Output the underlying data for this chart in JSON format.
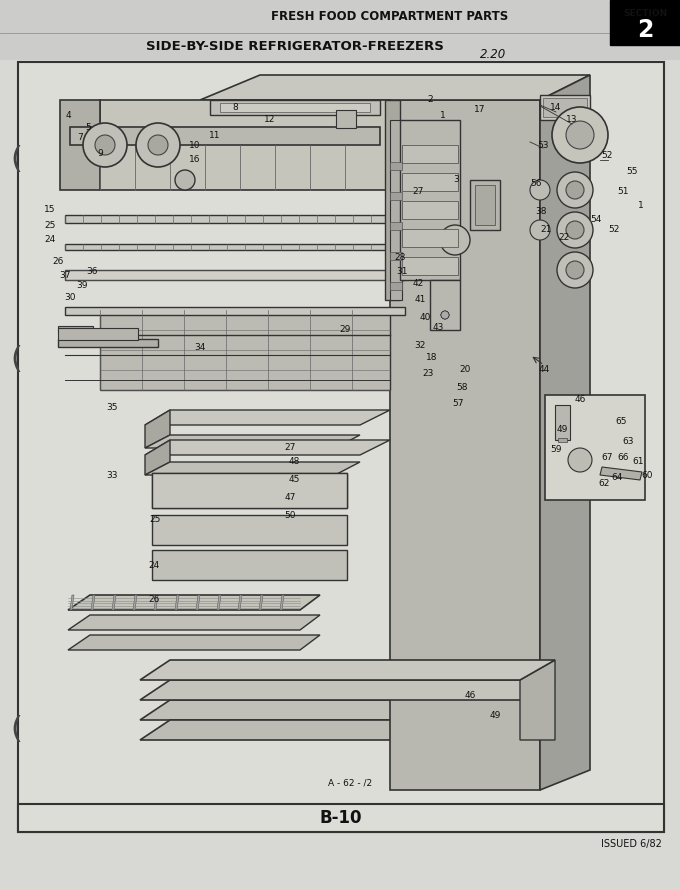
{
  "title_left": "FRESH FOOD COMPARTMENT PARTS",
  "section_label": "SECTION",
  "section_number": "2",
  "subtitle": "SIDE-BY-SIDE REFRIGERATOR-FREEZERS",
  "page_code": "2.20",
  "diagram_label": "A - 62 - /2",
  "bottom_label": "B-10",
  "issued": "ISSUED 6/82",
  "background_color": "#d8d8d4",
  "diagram_bg": "#e8e8e0",
  "border_color": "#222222",
  "text_color": "#111111",
  "section_bg": "#111111",
  "section_text": "#ffffff",
  "fig_width": 6.8,
  "fig_height": 8.9,
  "dpi": 100
}
